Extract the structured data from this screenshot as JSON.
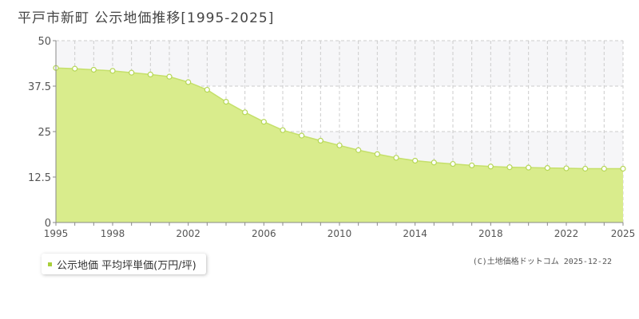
{
  "title": "平戸市新町 公示地価推移[1995-2025]",
  "legend": {
    "label": "公示地価 平均坪単価(万円/坪)"
  },
  "copyright": "(C)土地価格ドットコム 2025-12-22",
  "colors": {
    "fill": "#d9ec8c",
    "line": "#c5e06a",
    "point_stroke": "#b6d757",
    "grid": "#cccccc",
    "legend_swatch": "#a8cf3a"
  },
  "chart_data": {
    "type": "area",
    "title": "",
    "xlabel": "",
    "ylabel": "",
    "x": [
      1995,
      1996,
      1997,
      1998,
      1999,
      2000,
      2001,
      2002,
      2003,
      2004,
      2005,
      2006,
      2007,
      2008,
      2009,
      2010,
      2011,
      2012,
      2013,
      2014,
      2015,
      2016,
      2017,
      2018,
      2019,
      2020,
      2021,
      2022,
      2023,
      2024,
      2025
    ],
    "series": [
      {
        "name": "公示地価 平均坪単価(万円/坪)",
        "values": [
          42.5,
          42.3,
          42.0,
          41.7,
          41.2,
          40.7,
          40.1,
          38.6,
          36.5,
          33.2,
          30.3,
          27.7,
          25.4,
          23.9,
          22.5,
          21.2,
          19.9,
          18.8,
          17.8,
          17.0,
          16.5,
          16.1,
          15.7,
          15.4,
          15.2,
          15.1,
          15.0,
          14.9,
          14.8,
          14.8,
          14.8
        ]
      }
    ],
    "xlim": [
      1995,
      2025
    ],
    "ylim": [
      0,
      50
    ],
    "x_ticks": [
      "1995",
      "1998",
      "2002",
      "2006",
      "2010",
      "2014",
      "2018",
      "2022",
      "2025"
    ],
    "y_ticks": [
      "0",
      "12.5",
      "25",
      "37.5",
      "50"
    ],
    "grid": true,
    "legend_position": "bottom-left"
  }
}
